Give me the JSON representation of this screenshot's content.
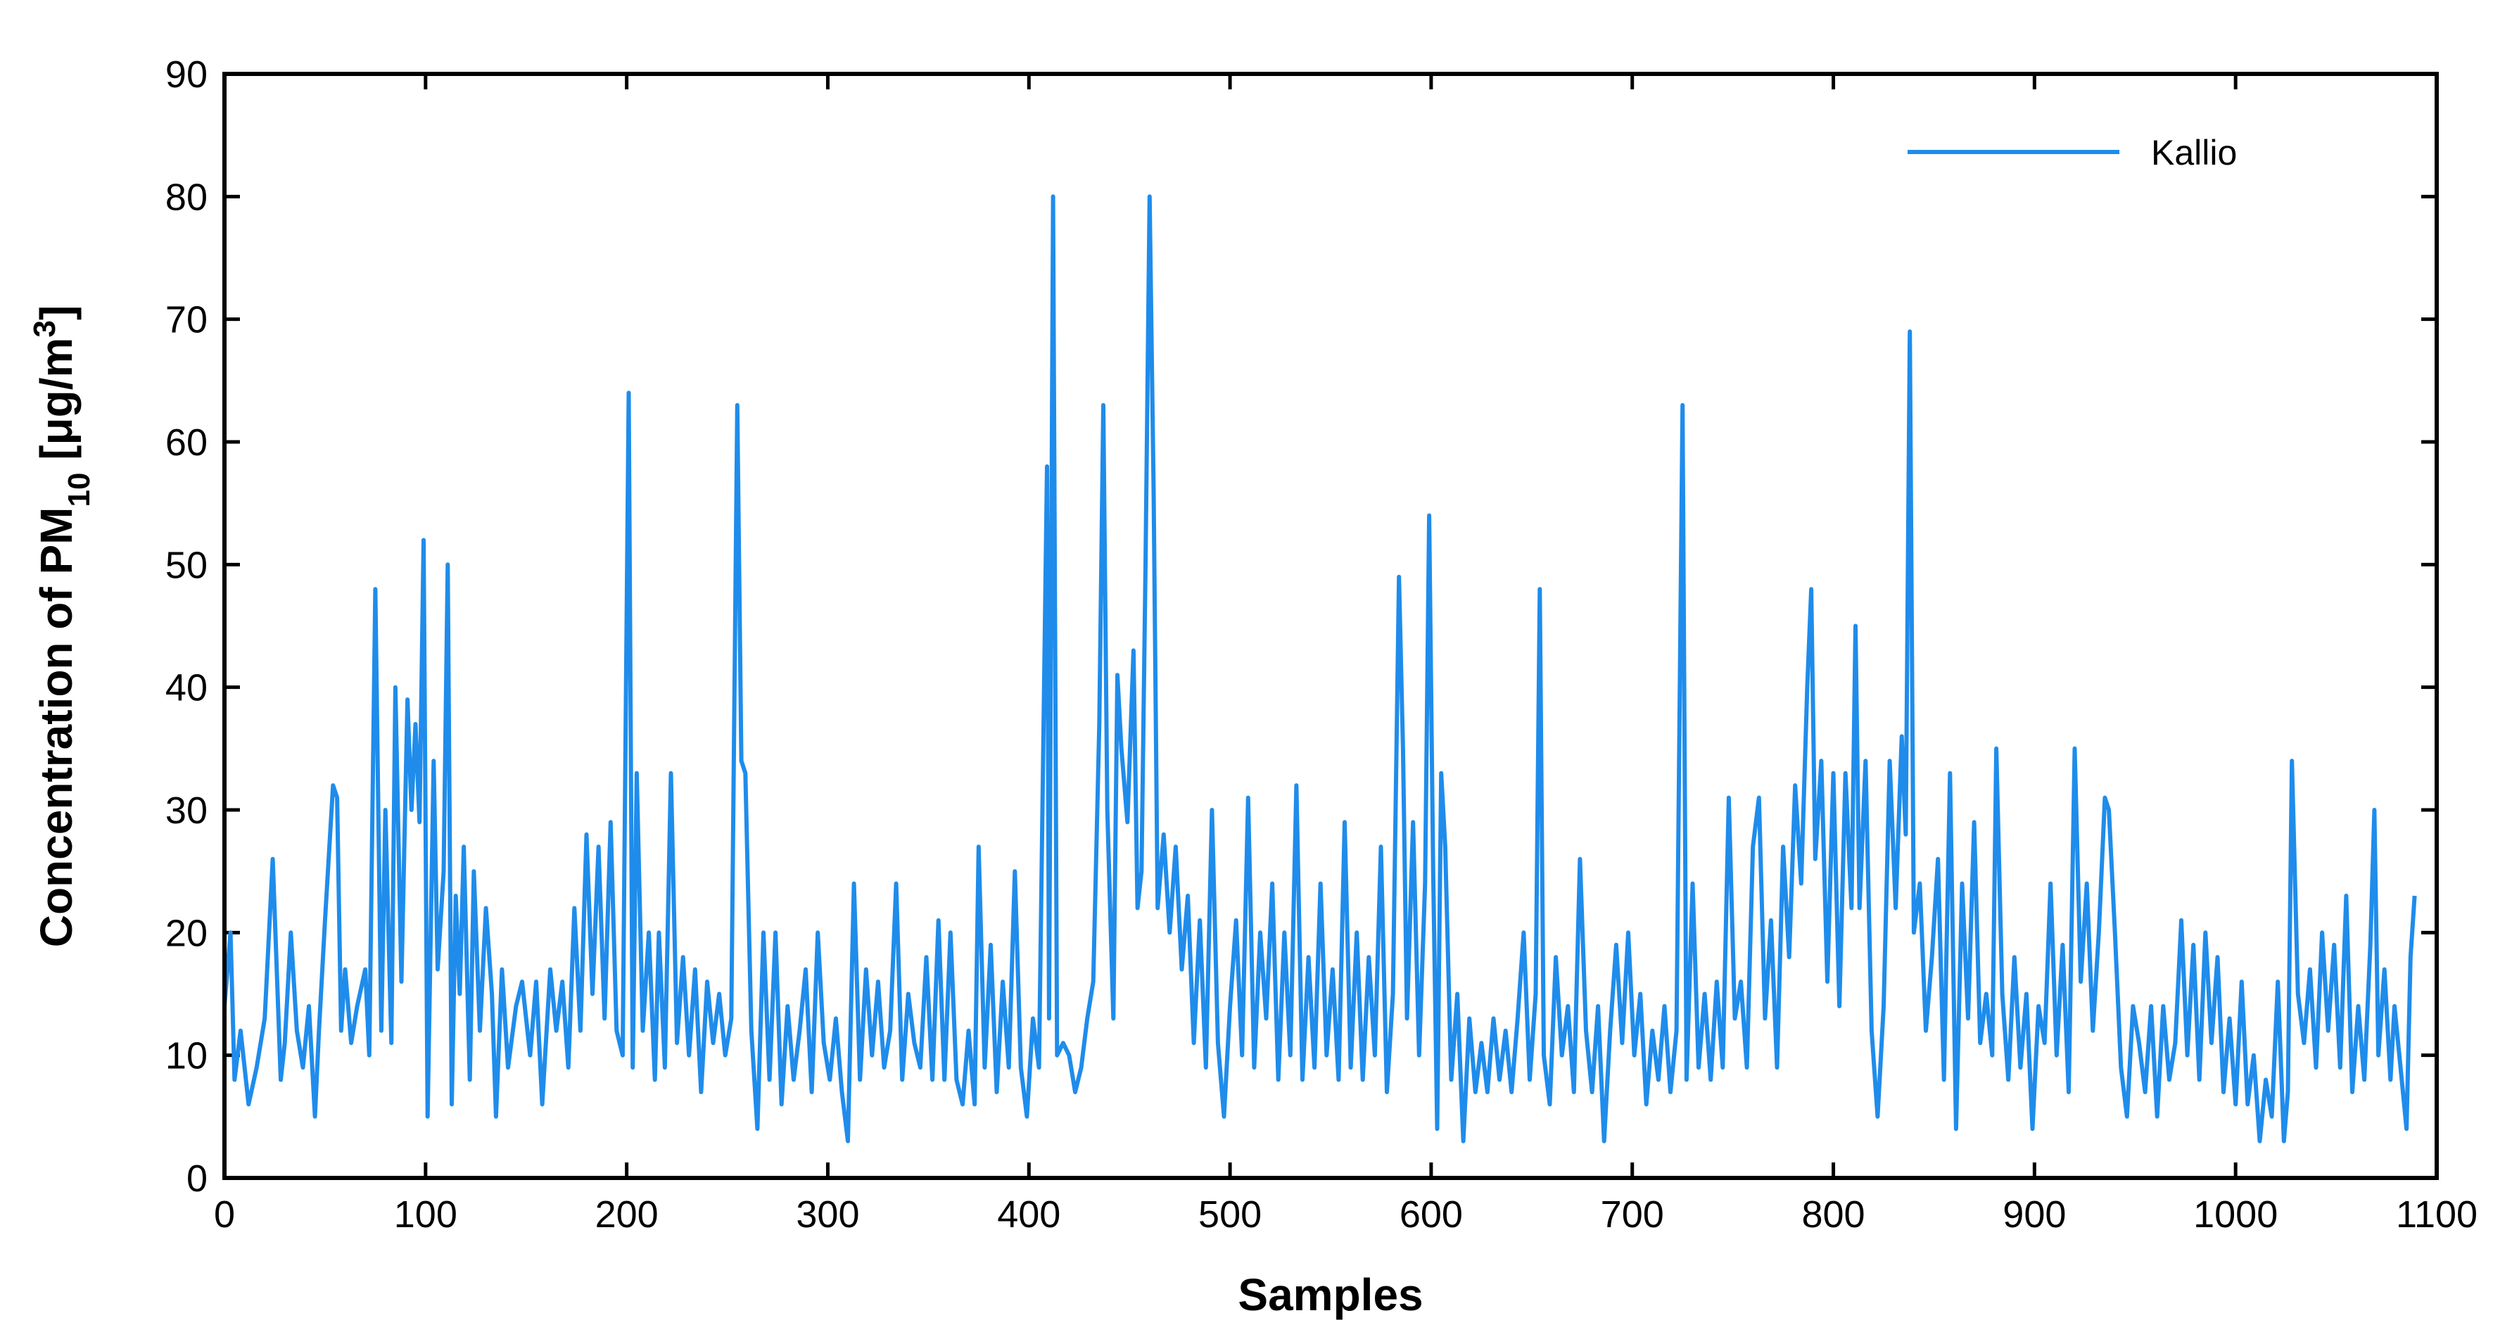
{
  "chart_data": {
    "type": "line",
    "x_label": "Samples",
    "y_label": [
      "Concentration of PM",
      "10",
      " [μg/m",
      "3",
      "]"
    ],
    "xlim": [
      0,
      1100
    ],
    "ylim": [
      0,
      90
    ],
    "xticks": [
      0,
      100,
      200,
      300,
      400,
      500,
      600,
      700,
      800,
      900,
      1000,
      1100
    ],
    "yticks": [
      0,
      10,
      20,
      30,
      40,
      50,
      60,
      70,
      80,
      90
    ],
    "grid": false,
    "legend": "upper right",
    "x": [
      0,
      3,
      5,
      8,
      12,
      16,
      20,
      24,
      28,
      30,
      33,
      36,
      39,
      42,
      45,
      47,
      50,
      54,
      56,
      58,
      60,
      63,
      66,
      70,
      72,
      75,
      78,
      80,
      83,
      85,
      88,
      91,
      93,
      95,
      97,
      99,
      101,
      104,
      106,
      109,
      111,
      113,
      115,
      117,
      119,
      122,
      124,
      127,
      130,
      133,
      135,
      138,
      141,
      145,
      148,
      152,
      155,
      158,
      162,
      165,
      168,
      171,
      174,
      177,
      180,
      183,
      186,
      189,
      192,
      195,
      198,
      201,
      203,
      205,
      208,
      211,
      214,
      216,
      219,
      222,
      225,
      228,
      231,
      234,
      237,
      240,
      243,
      246,
      249,
      252,
      255,
      257,
      259,
      262,
      265,
      268,
      271,
      274,
      277,
      280,
      283,
      286,
      289,
      292,
      295,
      298,
      301,
      304,
      307,
      310,
      313,
      316,
      319,
      322,
      325,
      328,
      331,
      334,
      337,
      340,
      343,
      346,
      349,
      352,
      355,
      358,
      361,
      364,
      367,
      370,
      373,
      375,
      378,
      381,
      384,
      387,
      390,
      393,
      396,
      399,
      402,
      405,
      409,
      410,
      412,
      414,
      417,
      420,
      423,
      426,
      429,
      432,
      435,
      437,
      439,
      442,
      444,
      446,
      449,
      452,
      454,
      456,
      458,
      460,
      462,
      464,
      467,
      470,
      473,
      476,
      479,
      482,
      485,
      488,
      491,
      494,
      497,
      500,
      503,
      506,
      509,
      512,
      515,
      518,
      521,
      524,
      527,
      530,
      533,
      536,
      539,
      542,
      545,
      548,
      551,
      554,
      557,
      560,
      563,
      566,
      569,
      572,
      575,
      578,
      581,
      584,
      586,
      588,
      591,
      594,
      597,
      599,
      601,
      603,
      605,
      607,
      610,
      613,
      616,
      619,
      622,
      625,
      628,
      631,
      634,
      637,
      640,
      643,
      646,
      649,
      652,
      654,
      656,
      659,
      662,
      665,
      668,
      671,
      674,
      677,
      680,
      683,
      686,
      689,
      692,
      695,
      698,
      701,
      704,
      707,
      710,
      713,
      716,
      719,
      722,
      725,
      727,
      730,
      733,
      736,
      739,
      742,
      745,
      748,
      751,
      754,
      757,
      760,
      763,
      766,
      769,
      772,
      775,
      778,
      781,
      784,
      787,
      789,
      791,
      794,
      797,
      800,
      803,
      806,
      809,
      811,
      813,
      816,
      819,
      822,
      825,
      828,
      831,
      834,
      836,
      838,
      840,
      843,
      846,
      849,
      852,
      855,
      858,
      861,
      864,
      867,
      870,
      873,
      876,
      879,
      881,
      884,
      887,
      890,
      893,
      896,
      899,
      902,
      905,
      908,
      911,
      914,
      917,
      920,
      923,
      926,
      929,
      932,
      935,
      937,
      940,
      943,
      946,
      949,
      952,
      955,
      958,
      961,
      964,
      967,
      970,
      973,
      976,
      979,
      982,
      985,
      988,
      991,
      994,
      997,
      1000,
      1003,
      1006,
      1009,
      1012,
      1015,
      1018,
      1021,
      1024,
      1026,
      1028,
      1031,
      1034,
      1037,
      1040,
      1043,
      1046,
      1049,
      1052,
      1055,
      1058,
      1061,
      1064,
      1067,
      1069,
      1071,
      1074,
      1077,
      1079,
      1082,
      1085,
      1087,
      1089
    ],
    "series": [
      {
        "name": "Kallio",
        "color": "#1f8ceb",
        "values": [
          14,
          20,
          8,
          12,
          6,
          9,
          13,
          26,
          8,
          11,
          20,
          12,
          9,
          14,
          5,
          12,
          21,
          32,
          31,
          12,
          17,
          11,
          14,
          17,
          10,
          48,
          12,
          30,
          11,
          40,
          16,
          39,
          30,
          37,
          29,
          52,
          5,
          34,
          17,
          25,
          50,
          6,
          23,
          15,
          27,
          8,
          25,
          12,
          22,
          15,
          5,
          17,
          9,
          14,
          16,
          10,
          16,
          6,
          17,
          12,
          16,
          9,
          22,
          12,
          28,
          15,
          27,
          13,
          29,
          12,
          10,
          64,
          9,
          33,
          12,
          20,
          8,
          20,
          9,
          33,
          11,
          18,
          10,
          17,
          7,
          16,
          11,
          15,
          10,
          13,
          63,
          34,
          33,
          12,
          4,
          20,
          8,
          20,
          6,
          14,
          8,
          12,
          17,
          7,
          20,
          11,
          8,
          13,
          7,
          3,
          24,
          8,
          17,
          10,
          16,
          9,
          12,
          24,
          8,
          15,
          11,
          9,
          18,
          8,
          21,
          8,
          20,
          8,
          6,
          12,
          6,
          27,
          9,
          19,
          7,
          16,
          9,
          25,
          9,
          5,
          13,
          9,
          58,
          13,
          80,
          10,
          11,
          10,
          7,
          9,
          13,
          16,
          37,
          63,
          30,
          13,
          41,
          35,
          29,
          43,
          22,
          25,
          50,
          80,
          56,
          22,
          28,
          20,
          27,
          17,
          23,
          11,
          21,
          9,
          30,
          11,
          5,
          14,
          21,
          10,
          31,
          9,
          20,
          13,
          24,
          8,
          20,
          10,
          32,
          8,
          18,
          9,
          24,
          10,
          17,
          8,
          29,
          9,
          20,
          8,
          18,
          10,
          27,
          7,
          15,
          49,
          35,
          13,
          29,
          10,
          24,
          54,
          25,
          4,
          33,
          27,
          8,
          15,
          3,
          13,
          7,
          11,
          7,
          13,
          8,
          12,
          7,
          13,
          20,
          8,
          15,
          48,
          10,
          6,
          18,
          10,
          14,
          7,
          26,
          12,
          7,
          14,
          3,
          12,
          19,
          11,
          20,
          10,
          15,
          6,
          12,
          8,
          14,
          7,
          12,
          63,
          8,
          24,
          9,
          15,
          8,
          16,
          9,
          31,
          13,
          16,
          9,
          27,
          31,
          13,
          21,
          9,
          27,
          18,
          32,
          24,
          40,
          48,
          26,
          34,
          16,
          33,
          14,
          33,
          22,
          45,
          22,
          34,
          12,
          5,
          14,
          34,
          22,
          36,
          28,
          69,
          20,
          24,
          12,
          18,
          26,
          8,
          33,
          4,
          24,
          13,
          29,
          11,
          15,
          10,
          35,
          15,
          8,
          18,
          9,
          15,
          4,
          14,
          11,
          24,
          10,
          19,
          7,
          35,
          16,
          24,
          12,
          20,
          31,
          30,
          20,
          9,
          5,
          14,
          11,
          7,
          14,
          5,
          14,
          8,
          11,
          21,
          10,
          19,
          8,
          20,
          11,
          18,
          7,
          13,
          6,
          16,
          6,
          10,
          3,
          8,
          5,
          16,
          3,
          7,
          34,
          15,
          11,
          17,
          9,
          20,
          12,
          19,
          9,
          23,
          7,
          14,
          8,
          19,
          30,
          10,
          17,
          8,
          14,
          9,
          4,
          18,
          23
        ]
      }
    ]
  }
}
